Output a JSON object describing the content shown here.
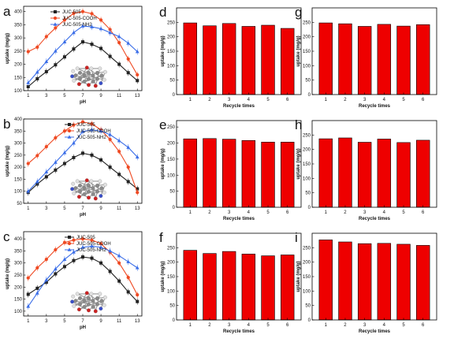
{
  "colors": {
    "black": "#222222",
    "red": "#ef4a23",
    "blue": "#3b6ee8",
    "bar": "#ee0000"
  },
  "chart_data": [
    {
      "panel": "a",
      "type": "line",
      "xlabel": "pH",
      "ylabel": "uptake (mg/g)",
      "xlim": [
        0.5,
        13.5
      ],
      "ylim": [
        100,
        420
      ],
      "x_ticks": [
        1,
        3,
        5,
        7,
        9,
        11,
        13
      ],
      "y_ticks": [
        100,
        150,
        200,
        250,
        300,
        350,
        400
      ],
      "x": [
        1,
        2,
        3,
        4,
        5,
        6,
        7,
        8,
        9,
        10,
        11,
        12,
        13
      ],
      "legend": "top-left",
      "series": [
        {
          "name": "JUC-505",
          "color": "black",
          "marker": "square",
          "values": [
            115,
            145,
            172,
            198,
            228,
            258,
            285,
            276,
            260,
            230,
            200,
            168,
            138
          ]
        },
        {
          "name": "JUC-505-COOH",
          "color": "red",
          "marker": "circle",
          "values": [
            248,
            265,
            305,
            338,
            368,
            393,
            400,
            392,
            368,
            332,
            282,
            220,
            160
          ]
        },
        {
          "name": "JUC-505-NH2",
          "color": "blue",
          "marker": "triangle",
          "values": [
            130,
            170,
            210,
            250,
            285,
            320,
            345,
            342,
            335,
            320,
            305,
            280,
            248
          ]
        }
      ]
    },
    {
      "panel": "b",
      "type": "line",
      "xlabel": "pH",
      "ylabel": "uptake (mg/g)",
      "xlim": [
        0.5,
        13.5
      ],
      "ylim": [
        50,
        400
      ],
      "x_ticks": [
        1,
        3,
        5,
        7,
        9,
        11,
        13
      ],
      "y_ticks": [
        50,
        100,
        150,
        200,
        250,
        300,
        350,
        400
      ],
      "x": [
        1,
        2,
        3,
        4,
        5,
        6,
        7,
        8,
        9,
        10,
        11,
        12,
        13
      ],
      "legend": "top-right",
      "series": [
        {
          "name": "JUC-505",
          "color": "black",
          "marker": "square",
          "values": [
            95,
            130,
            160,
            188,
            215,
            240,
            258,
            250,
            230,
            200,
            170,
            140,
            110
          ]
        },
        {
          "name": "JUC-505-COOH",
          "color": "red",
          "marker": "circle",
          "values": [
            215,
            248,
            285,
            322,
            350,
            375,
            388,
            380,
            355,
            315,
            265,
            200,
            95
          ]
        },
        {
          "name": "JUC-505-NH2",
          "color": "blue",
          "marker": "triangle",
          "values": [
            100,
            140,
            180,
            220,
            260,
            300,
            348,
            355,
            350,
            335,
            310,
            282,
            242
          ]
        }
      ]
    },
    {
      "panel": "c",
      "type": "line",
      "xlabel": "pH",
      "ylabel": "uptake (mg/g)",
      "xlim": [
        0.5,
        13.5
      ],
      "ylim": [
        80,
        430
      ],
      "x_ticks": [
        1,
        3,
        5,
        7,
        9,
        11,
        13
      ],
      "y_ticks": [
        100,
        150,
        200,
        250,
        300,
        350,
        400
      ],
      "x": [
        1,
        2,
        3,
        4,
        5,
        6,
        7,
        8,
        9,
        10,
        11,
        12,
        13
      ],
      "legend": "top-right",
      "series": [
        {
          "name": "JUC-505",
          "color": "black",
          "marker": "square",
          "values": [
            170,
            195,
            220,
            255,
            285,
            310,
            325,
            320,
            300,
            265,
            225,
            180,
            140
          ]
        },
        {
          "name": "JUC-505-COOH",
          "color": "red",
          "marker": "circle",
          "values": [
            238,
            280,
            315,
            355,
            385,
            395,
            400,
            395,
            380,
            345,
            300,
            240,
            168
          ]
        },
        {
          "name": "JUC-505-NH2",
          "color": "blue",
          "marker": "triangle",
          "values": [
            120,
            175,
            230,
            275,
            315,
            345,
            365,
            370,
            365,
            350,
            330,
            305,
            280
          ]
        }
      ]
    },
    {
      "panel": "d",
      "type": "bar",
      "xlabel": "Recycle times",
      "ylabel": "uptake (mg/g)",
      "ylim": [
        0,
        300
      ],
      "y_ticks": [
        0,
        50,
        100,
        150,
        200,
        250
      ],
      "categories": [
        "1",
        "2",
        "3",
        "4",
        "5",
        "6"
      ],
      "values": [
        248,
        238,
        246,
        236,
        240,
        229
      ]
    },
    {
      "panel": "e",
      "type": "bar",
      "xlabel": "Recycle times",
      "ylabel": "uptake (mg/g)",
      "ylim": [
        0,
        270
      ],
      "y_ticks": [
        0,
        50,
        100,
        150,
        200,
        250
      ],
      "categories": [
        "1",
        "2",
        "3",
        "4",
        "5",
        "6"
      ],
      "values": [
        213,
        214,
        212,
        208,
        203,
        203
      ]
    },
    {
      "panel": "f",
      "type": "bar",
      "xlabel": "Recycle times",
      "ylabel": "uptake (mg/g)",
      "ylim": [
        0,
        300
      ],
      "y_ticks": [
        0,
        50,
        100,
        150,
        200,
        250
      ],
      "categories": [
        "1",
        "2",
        "3",
        "4",
        "5",
        "6"
      ],
      "values": [
        241,
        230,
        237,
        228,
        222,
        225
      ]
    },
    {
      "panel": "g",
      "type": "bar",
      "xlabel": "Recycle times",
      "ylabel": "uptake (mg/g)",
      "ylim": [
        0,
        300
      ],
      "y_ticks": [
        0,
        50,
        100,
        150,
        200,
        250
      ],
      "categories": [
        "1",
        "2",
        "3",
        "4",
        "5",
        "6"
      ],
      "values": [
        248,
        245,
        236,
        243,
        237,
        242
      ]
    },
    {
      "panel": "h",
      "type": "bar",
      "xlabel": "Recycle times",
      "ylabel": "uptake (mg/g)",
      "ylim": [
        0,
        300
      ],
      "y_ticks": [
        0,
        50,
        100,
        150,
        200,
        250
      ],
      "categories": [
        "1",
        "2",
        "3",
        "4",
        "5",
        "6"
      ],
      "values": [
        237,
        240,
        225,
        236,
        224,
        232
      ]
    },
    {
      "panel": "i",
      "type": "bar",
      "xlabel": "Recycle times",
      "ylabel": "uptake (mg/g)",
      "ylim": [
        0,
        300
      ],
      "y_ticks": [
        0,
        50,
        100,
        150,
        200,
        250
      ],
      "categories": [
        "1",
        "2",
        "3",
        "4",
        "5",
        "6"
      ],
      "values": [
        277,
        270,
        264,
        265,
        262,
        258
      ]
    }
  ]
}
